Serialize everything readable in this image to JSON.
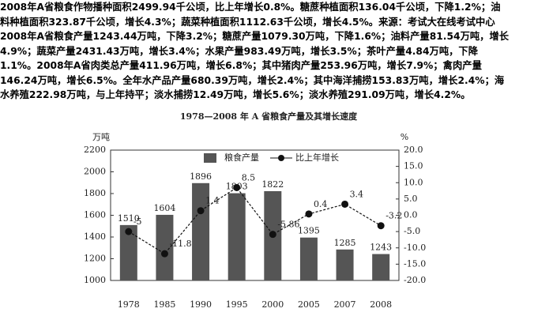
{
  "paragraph": [
    "2008年A省粮食作物播种面积2499.94千公顷，比上年增长0.8%。糖蔗种植面积136.04千公顷，下降1.2%；油",
    "料种植面积323.87千公顷，增长4.3%；蔬菜种植面积1112.63千公顷，增长4.5%。来源：考试大在线考试中心",
    "2008年A省粮食产量1243.44万吨，下降3.2%；糖蔗产量1079.30万吨，下降1.6%；油料产量81.54万吨，增长",
    "4.9%；蔬菜产量2431.43万吨，增长3.4%；水果产量983.49万吨，增长3.5%；茶叶产量4.84万吨，下降",
    "1.1%。2008年A省肉类总产量411.96万吨，增长6.8%；其中猪肉产量253.96万吨，增长7.9%；禽肉产量",
    "146.24万吨，增长6.5%。全年水产品产量680.39万吨，增长2.4%；其中海洋捕捞153.83万吨，增长2.4%；海",
    "水养殖222.98万吨，与上年持平；淡水捕捞12.49万吨，增长5.6%；淡水养殖291.09万吨，增长4.2%。"
  ],
  "chart_data": {
    "type": "bar-line",
    "title": "1978—2008 年 A 省粮食产量及其增长速度",
    "y_label": "万吨",
    "y2_label": "%",
    "categories": [
      "1978",
      "1985",
      "1990",
      "1995",
      "2000",
      "2005",
      "2007",
      "2008"
    ],
    "series": [
      {
        "name": "粮食产量",
        "type": "bar",
        "color": "#555555",
        "values": [
          1510,
          1604,
          1896,
          1803,
          1822,
          1395,
          1285,
          1243
        ]
      },
      {
        "name": "比上年增长",
        "type": "line",
        "axis": "y2",
        "color": "#111111",
        "values": [
          -5,
          -11.8,
          1.4,
          8.5,
          -5.86,
          0.4,
          3.4,
          -3.2
        ]
      }
    ],
    "ylim": [
      1000,
      2200
    ],
    "yticks": [
      1000,
      1200,
      1400,
      1600,
      1800,
      2000,
      2200
    ],
    "y2lim": [
      -20,
      20
    ],
    "y2ticks": [
      {
        "value": -20,
        "label": "-20.0"
      },
      {
        "value": -15,
        "label": "-15.0"
      },
      {
        "value": -10,
        "label": "-10.0"
      },
      {
        "value": -5,
        "label": "-5.0"
      },
      {
        "value": 0,
        "label": "0.0"
      },
      {
        "value": 5,
        "label": "5.0"
      },
      {
        "value": 10,
        "label": "10.0"
      },
      {
        "value": 15,
        "label": "15.0"
      },
      {
        "value": 20,
        "label": "20.0"
      }
    ]
  }
}
